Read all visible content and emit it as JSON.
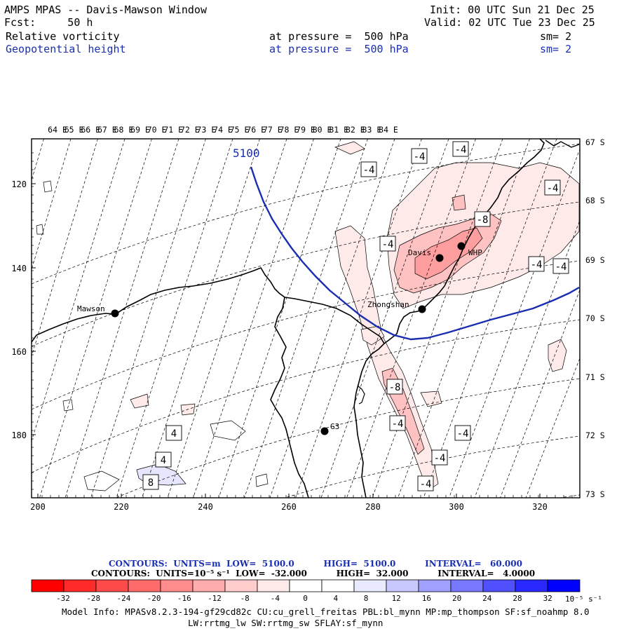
{
  "header": {
    "title": "AMPS MPAS -- Davis-Mawson Window",
    "init": "Init: 00 UTC Sun 21 Dec 25",
    "fcst": "Fcst:     50 h",
    "valid": "Valid: 02 UTC Tue 23 Dec 25",
    "field1": {
      "name": "Relative vorticity",
      "pressure": "at pressure =  500 hPa",
      "sm": "sm= 2"
    },
    "field2": {
      "name": "Geopotential height",
      "pressure": "at pressure =  500 hPa",
      "sm": "sm= 2"
    }
  },
  "map": {
    "top_lon_labels": [
      "64 E",
      "65 E",
      "66 E",
      "67 E",
      "68 E",
      "69 E",
      "70 E",
      "71 E",
      "72 E",
      "73 E",
      "74 E",
      "75 E",
      "76 E",
      "77 E",
      "78 E",
      "79 E",
      "80 E",
      "81 E",
      "82 E",
      "83 E",
      "84 E"
    ],
    "right_lat_labels": [
      "67 S",
      "68 S",
      "69 S",
      "70 S",
      "71 S",
      "72 S",
      "73 S"
    ],
    "left_ticks": [
      "120",
      "140",
      "160",
      "180"
    ],
    "bottom_ticks": [
      "200",
      "220",
      "240",
      "260",
      "280",
      "300",
      "320"
    ],
    "contour_label_height": "5100",
    "stations": [
      "Mawson",
      "Davis",
      "WHP",
      "Zhongshan",
      "G3"
    ],
    "vort_labels": [
      "-4",
      "-4",
      "-4",
      "-4",
      "-8",
      "-4",
      "-4",
      "-4",
      "-8",
      "-4",
      "-4",
      "-4",
      "-4",
      "4",
      "4",
      "8"
    ],
    "colors": {
      "height_line": "#1a2fb0",
      "coast": "#000000"
    }
  },
  "legend": {
    "contour_line1": "CONTOURS:  UNITS=m  LOW=  5100.0          HIGH=  5100.0          INTERVAL=   60.000",
    "contour_line2": "CONTOURS:  UNITS=10⁻⁵ s⁻¹  LOW=  -32.000          HIGH=  32.000          INTERVAL=   4.0000",
    "tick_labels": [
      "-32",
      "-28",
      "-24",
      "-20",
      "-16",
      "-12",
      "-8",
      "-4",
      "0",
      "4",
      "8",
      "12",
      "16",
      "20",
      "24",
      "28",
      "32"
    ],
    "units": "10⁻⁵ s⁻¹",
    "colors": [
      "#ff0000",
      "#ff2a2a",
      "#ff4a4a",
      "#ff6a6a",
      "#ff8c8c",
      "#ffacac",
      "#ffcccc",
      "#ffeaea",
      "#ffffff",
      "#ffffff",
      "#eaeaff",
      "#c8c8ff",
      "#a0a0ff",
      "#7878ff",
      "#5050ff",
      "#2828ff",
      "#0000ff"
    ]
  },
  "model_info": {
    "line1": "Model Info: MPASv8.2.3-194-gf29cd82c CU:cu_grell_freitas PBL:bl_mynn MP:mp_thompson SF:sf_noahmp 8.0",
    "line2": "LW:rrtmg_lw SW:rrtmg_sw SFLAY:sf_mynn"
  }
}
